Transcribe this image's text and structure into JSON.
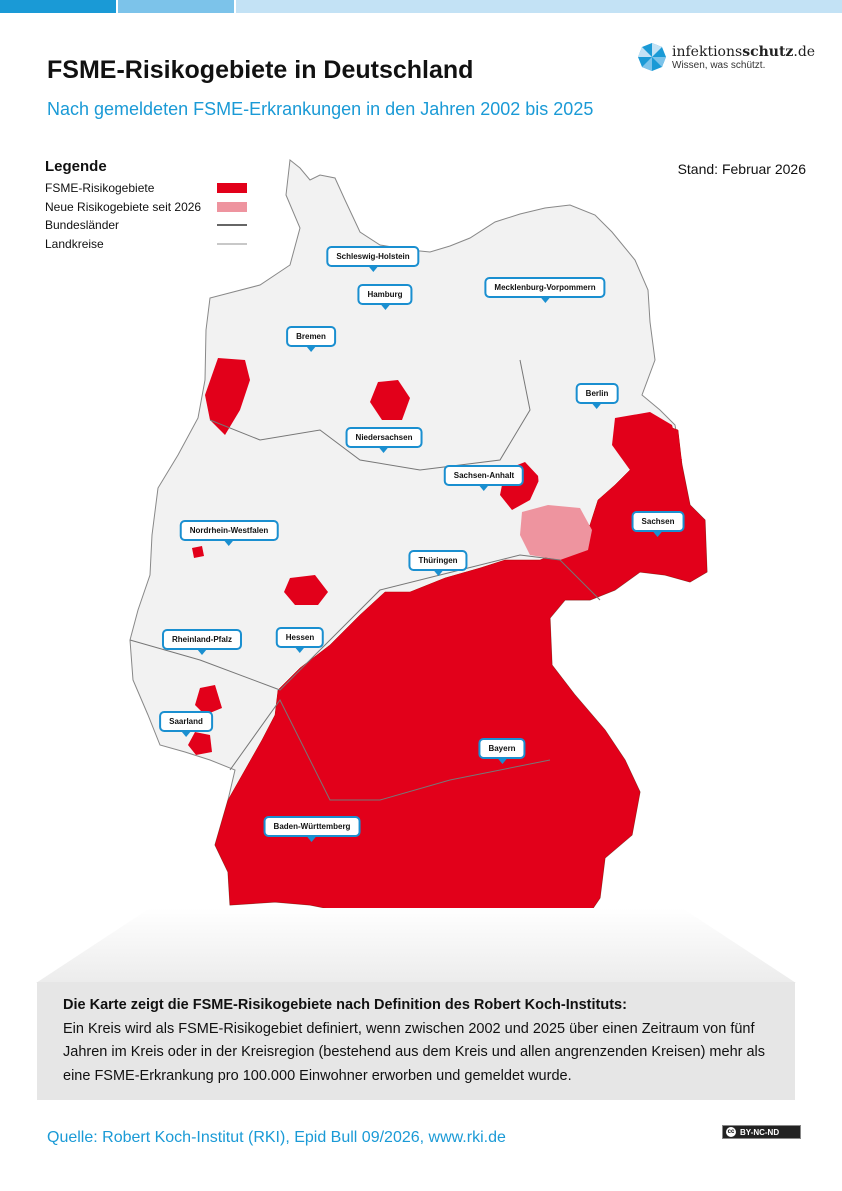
{
  "header": {
    "title": "FSME-Risikogebiete in Deutschland",
    "subtitle": "Nach gemeldeten FSME-Erkrankungen in den Jahren 2002 bis 2025",
    "stand": "Stand: Februar 2026"
  },
  "logo": {
    "name_light": "infektions",
    "name_bold": "schutz",
    "name_tld": ".de",
    "tagline": "Wissen, was schützt."
  },
  "legend": {
    "title": "Legende",
    "items": [
      {
        "label": "FSME-Risikogebiete",
        "type": "fill",
        "color": "#e2001a"
      },
      {
        "label": "Neue Risikogebiete seit 2026",
        "type": "fill",
        "color": "#ee949f"
      },
      {
        "label": "Bundesländer",
        "type": "line",
        "color": "#666666"
      },
      {
        "label": "Landkreise",
        "type": "line",
        "color": "#c8c8c8"
      }
    ]
  },
  "map": {
    "colors": {
      "risk": "#e2001a",
      "new_risk": "#ee949f",
      "other": "#f2f2f2",
      "accent": "#1a8fd0"
    },
    "states": [
      "Schleswig-Holstein",
      "Hamburg",
      "Mecklenburg-Vorpommern",
      "Bremen",
      "Berlin",
      "Niedersachsen",
      "Sachsen-Anhalt",
      "Nordrhein-Westfalen",
      "Sachsen",
      "Thüringen",
      "Rheinland-Pfalz",
      "Hessen",
      "Saarland",
      "Bayern",
      "Baden-Württemberg"
    ]
  },
  "info": {
    "heading": "Die Karte zeigt die FSME-Risikogebiete nach Definition des Robert Koch-Instituts:",
    "text": "Ein Kreis wird als FSME-Risikogebiet definiert, wenn zwischen 2002 und 2025 über einen Zeitraum von fünf Jahren im Kreis oder in der Kreisregion (bestehend aus dem Kreis und allen angrenzenden Kreisen) mehr als eine FSME-Erkrankung pro 100.000 Einwohner erworben und gemeldet wurde."
  },
  "footer": {
    "source": "Quelle: Robert Koch-Institut (RKI), Epid Bull 09/2026, www.rki.de",
    "license": "BY-NC-ND",
    "license_icon": "cc"
  }
}
